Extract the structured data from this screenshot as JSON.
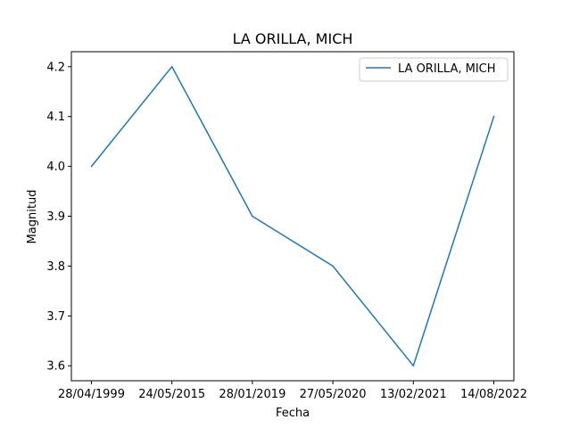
{
  "chart_data": {
    "type": "line",
    "title": "LA ORILLA, MICH",
    "xlabel": "Fecha",
    "ylabel": "Magnitud",
    "categories": [
      "28/04/1999",
      "24/05/2015",
      "28/01/2019",
      "27/05/2020",
      "13/02/2021",
      "14/08/2022"
    ],
    "series": [
      {
        "name": "LA ORILLA, MICH",
        "color": "#1f77b4",
        "values": [
          4.0,
          4.2,
          3.9,
          3.8,
          3.6,
          4.1
        ]
      }
    ],
    "ylim": [
      3.57,
      4.23
    ],
    "yticks": [
      "3.6",
      "3.7",
      "3.8",
      "3.9",
      "4.0",
      "4.1",
      "4.2"
    ],
    "grid": false,
    "legend_position": "top-right"
  }
}
